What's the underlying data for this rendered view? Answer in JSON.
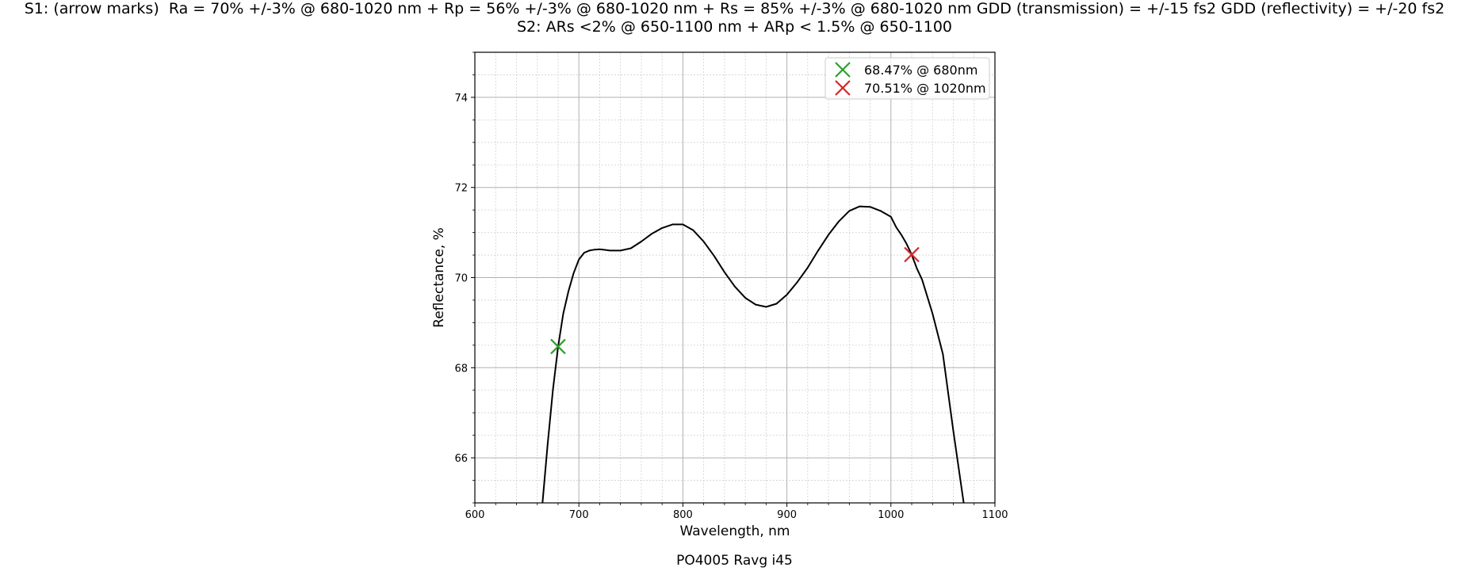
{
  "title": {
    "line1": "S1: (arrow marks)  Ra = 70% +/-3% @ 680-1020 nm + Rp = 56% +/-3% @ 680-1020 nm + Rs = 85% +/-3% @ 680-1020 nm GDD (transmission) = +/-15 fs2 GDD (reflectivity) = +/-20 fs2",
    "line2": "S2: ARs <2% @ 650-1100 nm + ARp < 1.5% @ 650-1100"
  },
  "footer": "PO4005 Ravg i45",
  "chart_data": {
    "type": "line",
    "xlabel": "Wavelength, nm",
    "ylabel": "Reflectance, %",
    "xlim": [
      600,
      1100
    ],
    "ylim": [
      65,
      75
    ],
    "xticks": [
      600,
      700,
      800,
      900,
      1000,
      1100
    ],
    "yticks": [
      66,
      68,
      70,
      72,
      74
    ],
    "grid": true,
    "legend_position": "top-right",
    "series": [
      {
        "color": "#000000",
        "x": [
          665,
          670,
          675,
          680,
          685,
          690,
          695,
          700,
          705,
          710,
          715,
          720,
          730,
          740,
          750,
          760,
          770,
          780,
          790,
          800,
          810,
          820,
          830,
          840,
          850,
          860,
          870,
          880,
          890,
          900,
          910,
          920,
          930,
          940,
          950,
          960,
          970,
          980,
          990,
          1000,
          1005,
          1010,
          1015,
          1020,
          1025,
          1030,
          1040,
          1050,
          1060,
          1070
        ],
        "y": [
          65.0,
          66.3,
          67.5,
          68.47,
          69.2,
          69.7,
          70.1,
          70.4,
          70.55,
          70.6,
          70.62,
          70.63,
          70.6,
          70.6,
          70.65,
          70.8,
          70.97,
          71.1,
          71.18,
          71.18,
          71.05,
          70.8,
          70.48,
          70.12,
          69.8,
          69.55,
          69.4,
          69.35,
          69.42,
          69.62,
          69.9,
          70.22,
          70.6,
          70.95,
          71.25,
          71.48,
          71.58,
          71.57,
          71.48,
          71.35,
          71.12,
          70.95,
          70.75,
          70.51,
          70.2,
          69.95,
          69.2,
          68.3,
          66.6,
          65.0
        ]
      }
    ],
    "markers": [
      {
        "label": "68.47% @ 680nm",
        "x": 680,
        "y": 68.47,
        "color": "#2ca02c"
      },
      {
        "label": "70.51% @ 1020nm",
        "x": 1020,
        "y": 70.51,
        "color": "#d62728"
      }
    ]
  }
}
